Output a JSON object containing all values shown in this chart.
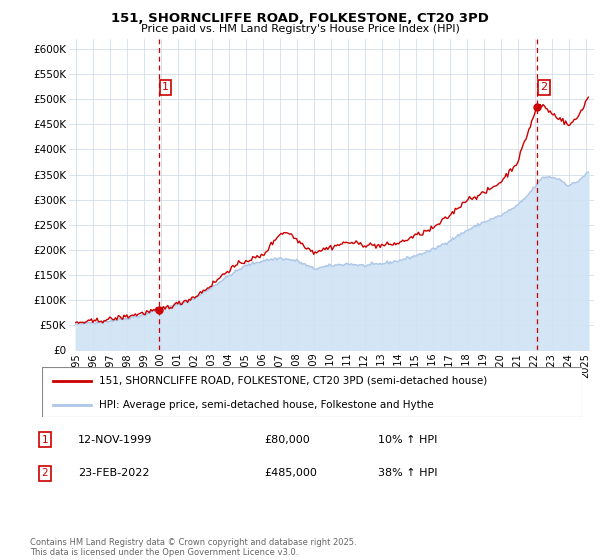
{
  "title": "151, SHORNCLIFFE ROAD, FOLKESTONE, CT20 3PD",
  "subtitle": "Price paid vs. HM Land Registry's House Price Index (HPI)",
  "legend_line1": "151, SHORNCLIFFE ROAD, FOLKESTONE, CT20 3PD (semi-detached house)",
  "legend_line2": "HPI: Average price, semi-detached house, Folkestone and Hythe",
  "footnote": "Contains HM Land Registry data © Crown copyright and database right 2025.\nThis data is licensed under the Open Government Licence v3.0.",
  "transaction1_label": "1",
  "transaction1_date": "12-NOV-1999",
  "transaction1_price": "£80,000",
  "transaction1_hpi": "10% ↑ HPI",
  "transaction2_label": "2",
  "transaction2_date": "23-FEB-2022",
  "transaction2_price": "£485,000",
  "transaction2_hpi": "38% ↑ HPI",
  "vline1_x": 1999.87,
  "vline2_x": 2022.14,
  "marker1_x": 1999.87,
  "marker1_y": 80000,
  "marker2_x": 2022.14,
  "marker2_y": 485000,
  "hpi_color": "#adc6e8",
  "hpi_fill_color": "#d0e4f5",
  "price_color": "#cc0000",
  "vline_color": "#cc0000",
  "background_color": "#ffffff",
  "grid_color": "#c8d8e8",
  "ylim": [
    0,
    620000
  ],
  "xlim": [
    1994.6,
    2025.5
  ],
  "yticks": [
    0,
    50000,
    100000,
    150000,
    200000,
    250000,
    300000,
    350000,
    400000,
    450000,
    500000,
    550000,
    600000
  ],
  "ytick_labels": [
    "£0",
    "£50K",
    "£100K",
    "£150K",
    "£200K",
    "£250K",
    "£300K",
    "£350K",
    "£400K",
    "£450K",
    "£500K",
    "£550K",
    "£600K"
  ],
  "xticks": [
    1995,
    1996,
    1997,
    1998,
    1999,
    2000,
    2001,
    2002,
    2003,
    2004,
    2005,
    2006,
    2007,
    2008,
    2009,
    2010,
    2011,
    2012,
    2013,
    2014,
    2015,
    2016,
    2017,
    2018,
    2019,
    2020,
    2021,
    2022,
    2023,
    2024,
    2025
  ]
}
